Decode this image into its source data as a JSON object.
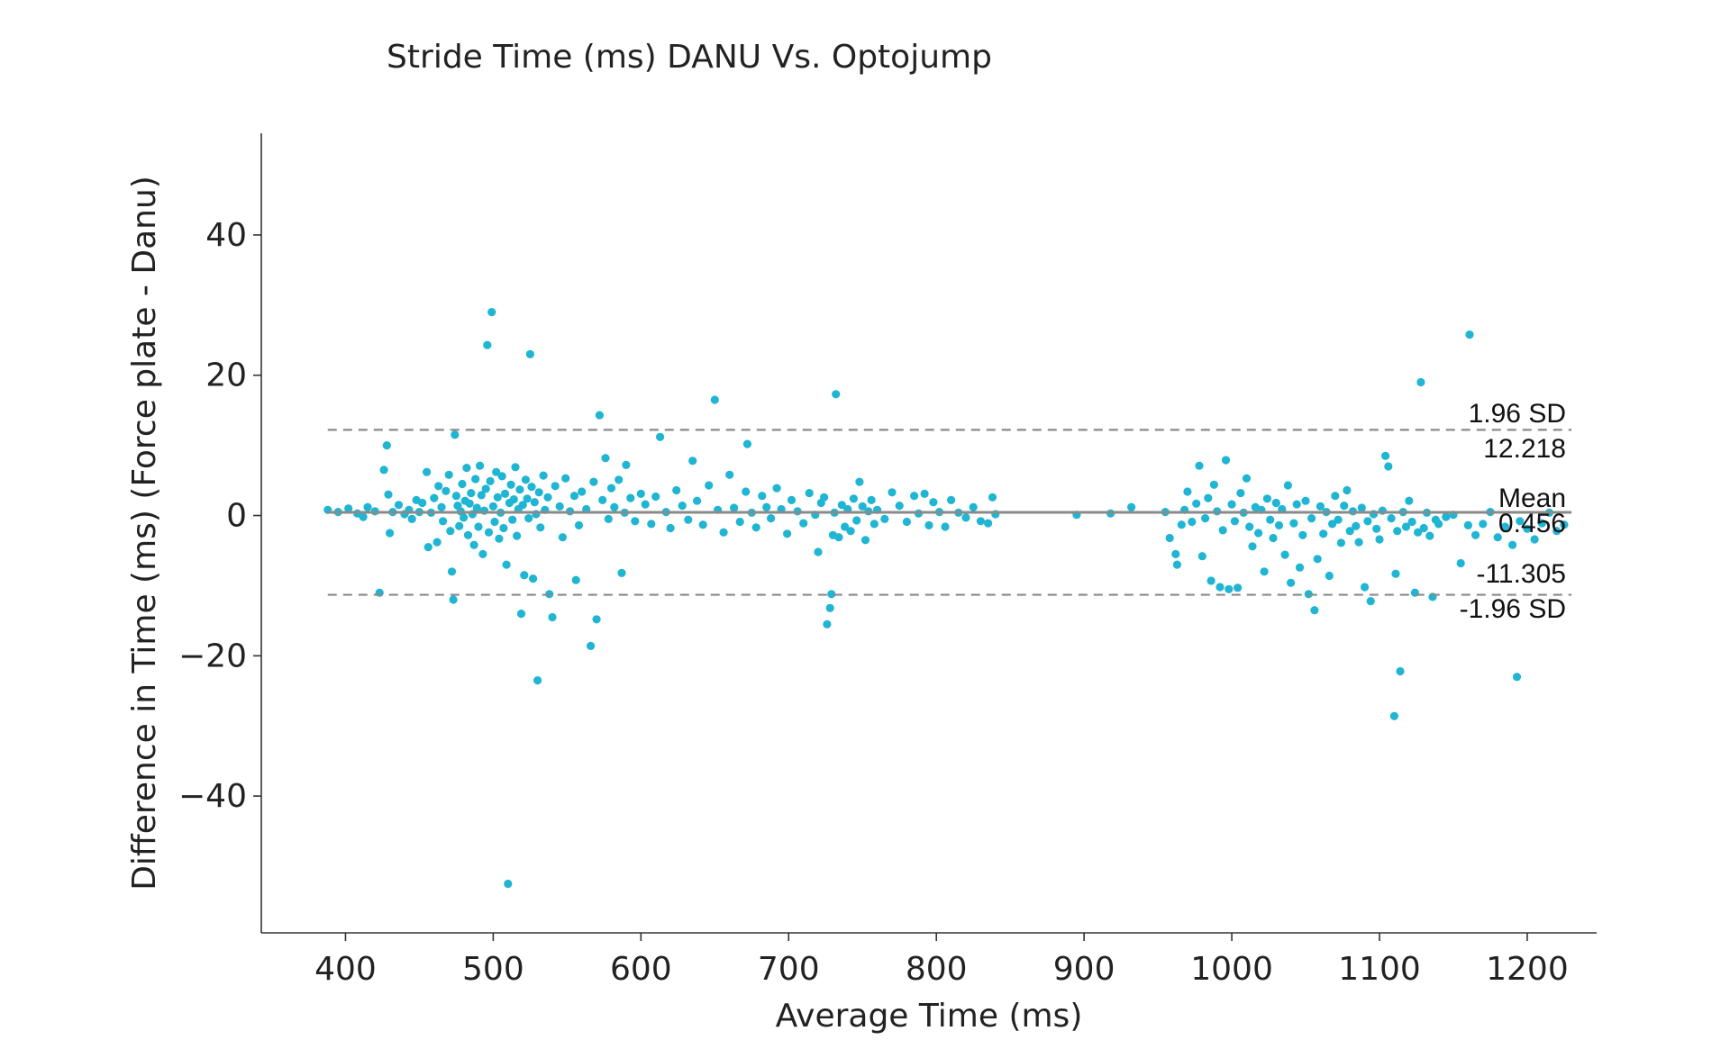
{
  "chart_data": {
    "type": "scatter",
    "title": "Stride Time (ms) DANU Vs. Optojump",
    "xlabel": "Average Time (ms)",
    "ylabel": "Difference in Time (ms) (Force plate - Danu)",
    "xlim": [
      343,
      1247
    ],
    "ylim": [
      -59.5,
      54.5
    ],
    "xticks": [
      400,
      500,
      600,
      700,
      800,
      900,
      1000,
      1100,
      1200
    ],
    "yticks": [
      -40,
      -20,
      0,
      20,
      40
    ],
    "xtick_labels": [
      "400",
      "500",
      "600",
      "700",
      "800",
      "900",
      "1000",
      "1100",
      "1200"
    ],
    "ytick_labels": [
      "−40",
      "−20",
      "0",
      "20",
      "40"
    ],
    "grid": false,
    "point_color": "#1fb5d3",
    "mean_line_color": "#8a8a8a",
    "sd_line_color": "#8a8a8a",
    "lines": {
      "upper": {
        "value": 12.218,
        "label": "1.96 SD",
        "value_label": "12.218"
      },
      "mean": {
        "value": 0.456,
        "label": "Mean",
        "value_label": "0.456"
      },
      "lower": {
        "value": -11.305,
        "label": "-1.96 SD",
        "value_label": "-11.305"
      }
    },
    "points": [
      [
        388,
        0.8
      ],
      [
        395,
        0.5
      ],
      [
        402,
        1.0
      ],
      [
        408,
        0.3
      ],
      [
        412,
        -0.2
      ],
      [
        415,
        1.2
      ],
      [
        420,
        0.6
      ],
      [
        423,
        -11
      ],
      [
        426,
        6.5
      ],
      [
        428,
        10
      ],
      [
        429,
        3
      ],
      [
        430,
        -2.5
      ],
      [
        432,
        0.5
      ],
      [
        436,
        1.5
      ],
      [
        440,
        0.2
      ],
      [
        443,
        0.8
      ],
      [
        445,
        -0.5
      ],
      [
        448,
        2.2
      ],
      [
        450,
        0.5
      ],
      [
        452,
        1.8
      ],
      [
        455,
        6.2
      ],
      [
        456,
        -4.5
      ],
      [
        458,
        0.4
      ],
      [
        460,
        2.5
      ],
      [
        462,
        -3.8
      ],
      [
        463,
        4.2
      ],
      [
        465,
        1.2
      ],
      [
        466,
        -0.8
      ],
      [
        468,
        3.5
      ],
      [
        470,
        5.8
      ],
      [
        471,
        -2.2
      ],
      [
        472,
        -8
      ],
      [
        473,
        -12
      ],
      [
        474,
        11.5
      ],
      [
        475,
        2.8
      ],
      [
        476,
        1.4
      ],
      [
        477,
        -1.5
      ],
      [
        478,
        0.6
      ],
      [
        479,
        4.5
      ],
      [
        480,
        -0.3
      ],
      [
        481,
        2.1
      ],
      [
        482,
        6.8
      ],
      [
        483,
        -2.8
      ],
      [
        484,
        1.7
      ],
      [
        485,
        3.2
      ],
      [
        486,
        0.2
      ],
      [
        487,
        -4.2
      ],
      [
        488,
        5.2
      ],
      [
        489,
        1.1
      ],
      [
        490,
        -1.6
      ],
      [
        491,
        7.1
      ],
      [
        492,
        2.9
      ],
      [
        493,
        -5.5
      ],
      [
        494,
        0.7
      ],
      [
        495,
        3.8
      ],
      [
        496,
        24.3
      ],
      [
        497,
        -2.4
      ],
      [
        498,
        4.9
      ],
      [
        499,
        29
      ],
      [
        500,
        1.3
      ],
      [
        501,
        -0.9
      ],
      [
        502,
        6.2
      ],
      [
        503,
        2.6
      ],
      [
        504,
        -3.3
      ],
      [
        505,
        0.4
      ],
      [
        506,
        5.6
      ],
      [
        507,
        -1.8
      ],
      [
        508,
        3.1
      ],
      [
        509,
        -7
      ],
      [
        510,
        -52.5
      ],
      [
        511,
        1.8
      ],
      [
        512,
        4.4
      ],
      [
        513,
        -0.6
      ],
      [
        514,
        2.3
      ],
      [
        515,
        6.9
      ],
      [
        516,
        -2.9
      ],
      [
        517,
        0.9
      ],
      [
        518,
        3.7
      ],
      [
        519,
        -14
      ],
      [
        520,
        1.5
      ],
      [
        521,
        -8.5
      ],
      [
        522,
        5.1
      ],
      [
        523,
        2.4
      ],
      [
        524,
        -0.4
      ],
      [
        525,
        23
      ],
      [
        526,
        4.1
      ],
      [
        527,
        -9
      ],
      [
        528,
        1.9
      ],
      [
        529,
        0.2
      ],
      [
        530,
        -23.5
      ],
      [
        531,
        3.3
      ],
      [
        532,
        -1.7
      ],
      [
        534,
        5.7
      ],
      [
        535,
        0.8
      ],
      [
        537,
        2.6
      ],
      [
        538,
        -11.2
      ],
      [
        540,
        -14.5
      ],
      [
        542,
        4.2
      ],
      [
        545,
        1.3
      ],
      [
        547,
        -3.1
      ],
      [
        549,
        5.3
      ],
      [
        552,
        0.6
      ],
      [
        555,
        2.8
      ],
      [
        556,
        -9.2
      ],
      [
        558,
        -1.4
      ],
      [
        560,
        3.4
      ],
      [
        563,
        0.9
      ],
      [
        566,
        -18.6
      ],
      [
        568,
        4.8
      ],
      [
        570,
        -14.8
      ],
      [
        572,
        14.3
      ],
      [
        574,
        2.2
      ],
      [
        576,
        8.2
      ],
      [
        578,
        -0.5
      ],
      [
        580,
        3.9
      ],
      [
        582,
        1.2
      ],
      [
        585,
        5.1
      ],
      [
        587,
        -8.2
      ],
      [
        589,
        0.4
      ],
      [
        590,
        7.2
      ],
      [
        593,
        2.5
      ],
      [
        596,
        -0.8
      ],
      [
        600,
        3.1
      ],
      [
        603,
        1.6
      ],
      [
        607,
        -1.2
      ],
      [
        610,
        2.7
      ],
      [
        613,
        11.2
      ],
      [
        617,
        0.5
      ],
      [
        620,
        -1.8
      ],
      [
        624,
        3.6
      ],
      [
        628,
        1.4
      ],
      [
        632,
        -0.6
      ],
      [
        635,
        7.8
      ],
      [
        638,
        2.1
      ],
      [
        642,
        -1.3
      ],
      [
        646,
        4.3
      ],
      [
        650,
        16.5
      ],
      [
        652,
        0.8
      ],
      [
        656,
        -2.4
      ],
      [
        660,
        5.8
      ],
      [
        663,
        1.1
      ],
      [
        667,
        -0.9
      ],
      [
        671,
        3.4
      ],
      [
        672,
        10.2
      ],
      [
        675,
        0.4
      ],
      [
        678,
        -1.7
      ],
      [
        682,
        2.8
      ],
      [
        685,
        1.2
      ],
      [
        688,
        -0.4
      ],
      [
        692,
        3.9
      ],
      [
        695,
        0.9
      ],
      [
        699,
        -2.6
      ],
      [
        702,
        2.2
      ],
      [
        706,
        0.6
      ],
      [
        710,
        -1.1
      ],
      [
        714,
        3.2
      ],
      [
        718,
        0.1
      ],
      [
        720,
        -5.2
      ],
      [
        722,
        1.8
      ],
      [
        724,
        2.6
      ],
      [
        726,
        -15.5
      ],
      [
        728,
        -13.2
      ],
      [
        729,
        -11.2
      ],
      [
        730,
        -2.8
      ],
      [
        731,
        0.4
      ],
      [
        732,
        17.3
      ],
      [
        734,
        -3.1
      ],
      [
        736,
        1.5
      ],
      [
        738,
        -1.6
      ],
      [
        740,
        0.9
      ],
      [
        742,
        -2.2
      ],
      [
        744,
        2.4
      ],
      [
        746,
        -0.7
      ],
      [
        748,
        4.8
      ],
      [
        750,
        1.3
      ],
      [
        752,
        -3.5
      ],
      [
        754,
        0.6
      ],
      [
        756,
        2.2
      ],
      [
        758,
        -1.2
      ],
      [
        760,
        0.8
      ],
      [
        765,
        -0.5
      ],
      [
        770,
        3.3
      ],
      [
        775,
        1.4
      ],
      [
        780,
        -0.9
      ],
      [
        785,
        2.8
      ],
      [
        788,
        0.3
      ],
      [
        792,
        3.1
      ],
      [
        795,
        -1.4
      ],
      [
        798,
        1.9
      ],
      [
        802,
        0.5
      ],
      [
        806,
        -1.6
      ],
      [
        810,
        2.2
      ],
      [
        815,
        0.4
      ],
      [
        820,
        -0.3
      ],
      [
        825,
        1.2
      ],
      [
        830,
        -0.8
      ],
      [
        835,
        -1.1
      ],
      [
        838,
        2.6
      ],
      [
        840,
        0.2
      ],
      [
        895,
        0.1
      ],
      [
        918,
        0.3
      ],
      [
        932,
        1.2
      ],
      [
        955,
        0.5
      ],
      [
        958,
        -3.2
      ],
      [
        962,
        -5.5
      ],
      [
        963,
        -7
      ],
      [
        966,
        -1.3
      ],
      [
        968,
        0.8
      ],
      [
        970,
        3.4
      ],
      [
        973,
        -0.9
      ],
      [
        976,
        1.7
      ],
      [
        978,
        7.1
      ],
      [
        980,
        -5.8
      ],
      [
        982,
        -0.4
      ],
      [
        984,
        2.5
      ],
      [
        986,
        -9.3
      ],
      [
        988,
        4.4
      ],
      [
        990,
        0.6
      ],
      [
        992,
        -10.2
      ],
      [
        994,
        -2.1
      ],
      [
        996,
        7.9
      ],
      [
        998,
        -10.5
      ],
      [
        1000,
        1.6
      ],
      [
        1002,
        -0.8
      ],
      [
        1004,
        -10.3
      ],
      [
        1006,
        3.2
      ],
      [
        1008,
        0.4
      ],
      [
        1010,
        5.3
      ],
      [
        1012,
        -1.6
      ],
      [
        1014,
        -4.4
      ],
      [
        1016,
        1.2
      ],
      [
        1018,
        -2.5
      ],
      [
        1020,
        0.8
      ],
      [
        1022,
        -8
      ],
      [
        1024,
        2.4
      ],
      [
        1026,
        -0.6
      ],
      [
        1028,
        -3.2
      ],
      [
        1030,
        1.8
      ],
      [
        1032,
        -1.4
      ],
      [
        1034,
        0.9
      ],
      [
        1036,
        -5.6
      ],
      [
        1038,
        4.3
      ],
      [
        1040,
        -9.6
      ],
      [
        1042,
        -1.1
      ],
      [
        1044,
        1.6
      ],
      [
        1046,
        -7.4
      ],
      [
        1048,
        -2.8
      ],
      [
        1050,
        2.1
      ],
      [
        1052,
        -11.2
      ],
      [
        1054,
        -0.4
      ],
      [
        1056,
        -13.5
      ],
      [
        1058,
        -6.2
      ],
      [
        1060,
        1.3
      ],
      [
        1062,
        -2.6
      ],
      [
        1064,
        0.5
      ],
      [
        1066,
        -8.6
      ],
      [
        1068,
        -1.2
      ],
      [
        1070,
        2.8
      ],
      [
        1072,
        -0.6
      ],
      [
        1074,
        -3.9
      ],
      [
        1076,
        1.4
      ],
      [
        1078,
        3.6
      ],
      [
        1080,
        -2.2
      ],
      [
        1082,
        0.6
      ],
      [
        1084,
        -1.5
      ],
      [
        1086,
        -3.8
      ],
      [
        1088,
        1.1
      ],
      [
        1090,
        -10.2
      ],
      [
        1092,
        -0.8
      ],
      [
        1094,
        -12.2
      ],
      [
        1096,
        0.2
      ],
      [
        1098,
        -1.9
      ],
      [
        1100,
        -3.4
      ],
      [
        1102,
        0.7
      ],
      [
        1104,
        8.5
      ],
      [
        1106,
        7
      ],
      [
        1108,
        -0.4
      ],
      [
        1110,
        -28.6
      ],
      [
        1111,
        -8.3
      ],
      [
        1112,
        -2.2
      ],
      [
        1114,
        -22.2
      ],
      [
        1116,
        0.5
      ],
      [
        1118,
        -1.6
      ],
      [
        1120,
        2.1
      ],
      [
        1122,
        -0.9
      ],
      [
        1124,
        -11
      ],
      [
        1126,
        -2.4
      ],
      [
        1128,
        19
      ],
      [
        1130,
        -1.8
      ],
      [
        1132,
        0.4
      ],
      [
        1134,
        -2.9
      ],
      [
        1136,
        -11.6
      ],
      [
        1138,
        -0.6
      ],
      [
        1140,
        -1.2
      ],
      [
        1145,
        -0.2
      ],
      [
        1150,
        0.1
      ],
      [
        1155,
        -6.8
      ],
      [
        1160,
        -1.4
      ],
      [
        1161,
        25.8
      ],
      [
        1165,
        -2.8
      ],
      [
        1170,
        -1.2
      ],
      [
        1175,
        0.5
      ],
      [
        1180,
        -3.1
      ],
      [
        1185,
        -1.6
      ],
      [
        1190,
        -4.2
      ],
      [
        1193,
        -23
      ],
      [
        1195,
        -0.8
      ],
      [
        1200,
        -1.9
      ],
      [
        1205,
        -3.4
      ],
      [
        1210,
        -1.1
      ],
      [
        1215,
        0.4
      ],
      [
        1220,
        -2.2
      ],
      [
        1225,
        -1.3
      ]
    ]
  }
}
